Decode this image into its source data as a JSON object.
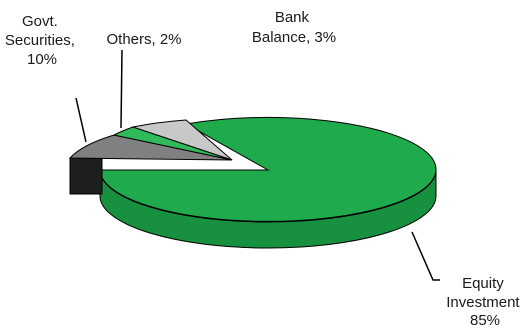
{
  "chart_data": {
    "type": "pie",
    "style": "3d-exploded",
    "slices": [
      {
        "label": "Equity Investment",
        "value": 85,
        "value_text": "85%",
        "color": "#1faa4c"
      },
      {
        "label": "Govt. Securities",
        "value": 10,
        "value_text": "10%",
        "color": "#808080"
      },
      {
        "label": "Others",
        "value": 2,
        "value_text": "2%",
        "color": "#2fba5c"
      },
      {
        "label": "Bank Balance",
        "value": 3,
        "value_text": "3%",
        "color": "#c8c8c8"
      }
    ],
    "labels": {
      "equity": {
        "line1": "Equity",
        "line2": "Investment",
        "line3": "85%"
      },
      "govt": {
        "line1": "Govt.",
        "line2": "Securities,",
        "line3": "10%"
      },
      "others": {
        "line1": "Others, 2%"
      },
      "bank": {
        "line1": "Bank",
        "line2": "Balance, 3%"
      }
    }
  }
}
